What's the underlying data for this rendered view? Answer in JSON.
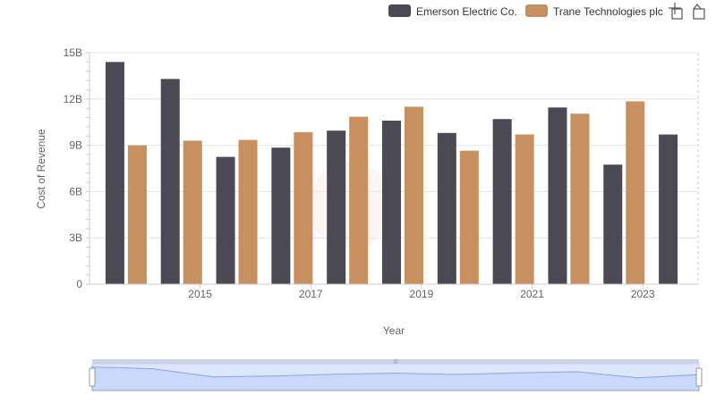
{
  "chart_data": {
    "type": "bar",
    "x": [
      2014,
      2015,
      2016,
      2017,
      2018,
      2019,
      2020,
      2021,
      2022,
      2023,
      2024
    ],
    "x_tick_labels": [
      "2015",
      "2017",
      "2019",
      "2021",
      "2023"
    ],
    "series": [
      {
        "name": "Emerson Electric Co.",
        "color": "#4a4954",
        "values": [
          14.4,
          13.3,
          8.25,
          8.85,
          9.95,
          10.6,
          9.8,
          10.7,
          11.45,
          7.75,
          9.7
        ]
      },
      {
        "name": "Trane Technologies plc",
        "color": "#c89060",
        "values": [
          9.0,
          9.3,
          9.35,
          9.85,
          10.85,
          11.5,
          8.65,
          9.7,
          11.05,
          11.85,
          null
        ]
      }
    ],
    "xlabel": "Year",
    "ylabel": "Cost of Revenue",
    "ylim": [
      0,
      15
    ],
    "y_ticks": [
      0,
      3,
      6,
      9,
      12,
      15
    ],
    "y_tick_labels": [
      "0",
      "3B",
      "6B",
      "9B",
      "12B",
      "15B"
    ],
    "grid": true,
    "legend_position": "top-right"
  },
  "toolbar": {
    "zoom_icon": "crosshair-zoom-icon",
    "reset_icon": "reset-zoom-icon"
  }
}
